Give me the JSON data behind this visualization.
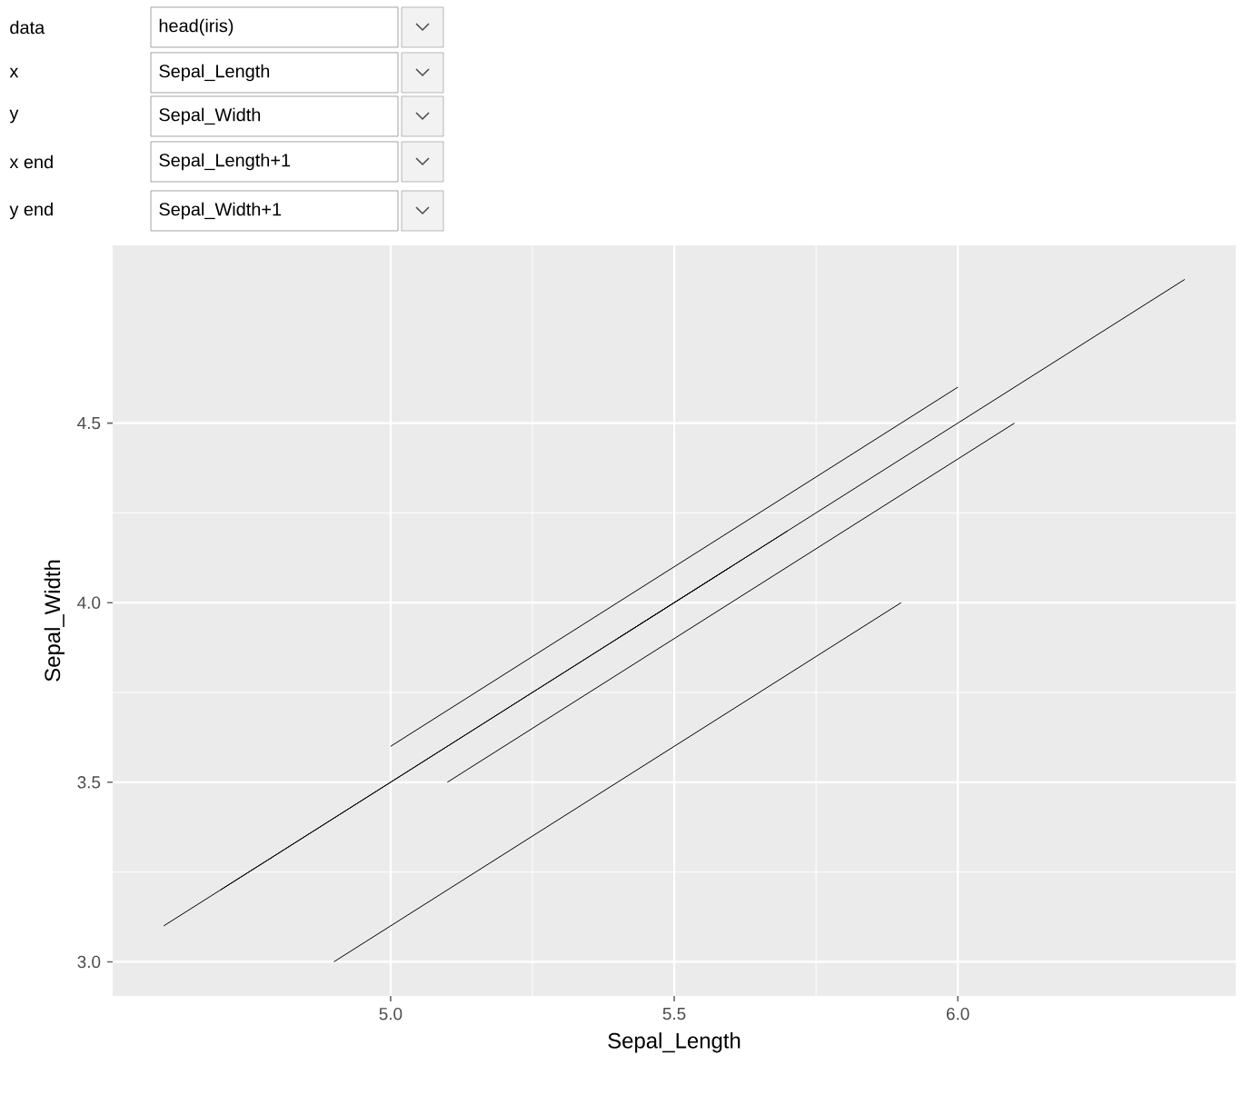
{
  "chart_data": {
    "type": "line",
    "xlabel": "Sepal_Length",
    "ylabel": "Sepal_Width",
    "xlim": [
      4.51,
      6.49
    ],
    "ylim": [
      2.905,
      4.995
    ],
    "xticks": [
      {
        "value": 5,
        "label": "5.0"
      },
      {
        "value": 5.5,
        "label": "5.5"
      },
      {
        "value": 6,
        "label": "6.0"
      }
    ],
    "yticks": [
      {
        "value": 3,
        "label": "3.0"
      },
      {
        "value": 3.5,
        "label": "3.5"
      },
      {
        "value": 4,
        "label": "4.0"
      },
      {
        "value": 4.5,
        "label": "4.5"
      }
    ],
    "grid": true,
    "series": [
      {
        "color": "#000000",
        "x": [
          5.1,
          6.1
        ],
        "values": [
          3.5,
          4.5
        ]
      },
      {
        "color": "#000000",
        "x": [
          4.9,
          5.9
        ],
        "values": [
          3.0,
          4.0
        ]
      },
      {
        "color": "#000000",
        "x": [
          4.7,
          5.7
        ],
        "values": [
          3.2,
          4.2
        ]
      },
      {
        "color": "#000000",
        "x": [
          4.6,
          5.6
        ],
        "values": [
          3.1,
          4.1
        ]
      },
      {
        "color": "#000000",
        "x": [
          5.0,
          6.0
        ],
        "values": [
          3.6,
          4.6
        ]
      },
      {
        "color": "#000000",
        "x": [
          5.4,
          6.4
        ],
        "values": [
          3.9,
          4.9
        ]
      }
    ],
    "annotations": [
      "data",
      "head(iris)",
      "x",
      "Sepal_Length",
      "y",
      "Sepal_Width",
      "x end",
      "Sepal_Length+1",
      "y end",
      "Sepal_Width+1"
    ]
  }
}
